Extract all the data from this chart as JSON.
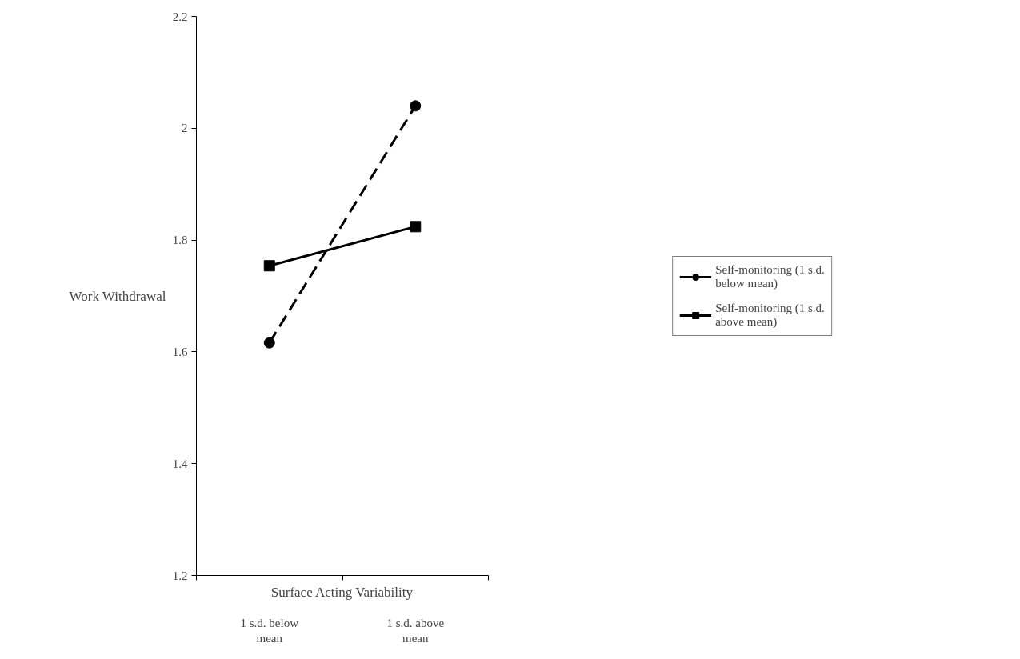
{
  "chart_data": {
    "type": "line",
    "xlabel": "Surface Acting Variability",
    "ylabel": "Work Withdrawal",
    "categories": [
      "1 s.d. below mean",
      "1 s.d. above mean"
    ],
    "series": [
      {
        "name": "Self-monitoring (1 s.d. below mean)",
        "color": "#000000",
        "values": [
          1.616,
          2.04
        ],
        "marker": "circle",
        "line_style": "dashed"
      },
      {
        "name": "Self-monitoring (1 s.d. above mean)",
        "color": "#000000",
        "values": [
          1.754,
          1.824
        ],
        "marker": "square",
        "line_style": "solid"
      }
    ],
    "ylim": [
      1.2,
      2.2
    ],
    "yticks": [
      1.2,
      1.4,
      1.6,
      1.8,
      2,
      2.2
    ],
    "grid": false,
    "legend": "right"
  }
}
